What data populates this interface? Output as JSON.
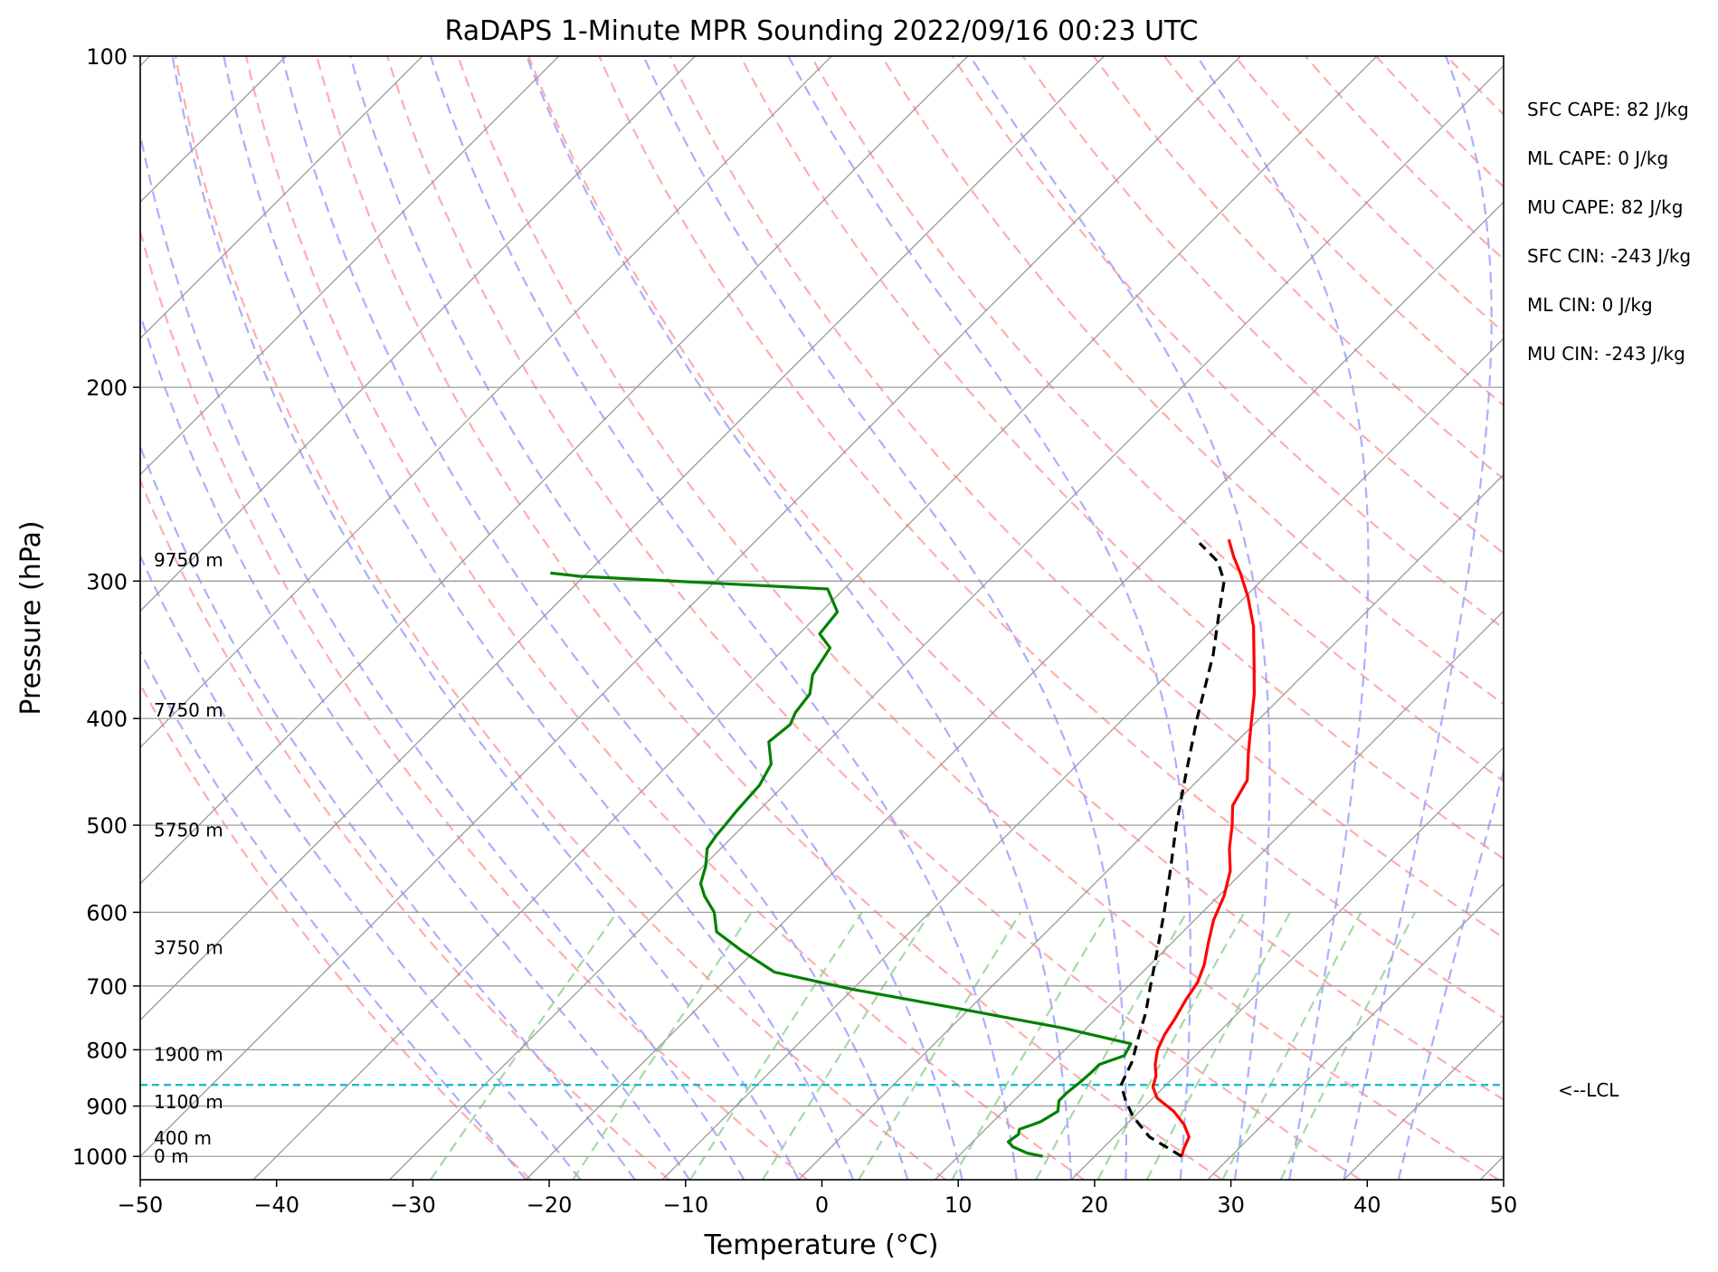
{
  "chart_data": {
    "type": "line",
    "title": "RaDAPS 1-Minute MPR Sounding 2022/09/16 00:23 UTC",
    "xlabel": "Temperature (°C)",
    "ylabel": "Pressure (hPa)",
    "xlim": [
      -50,
      50
    ],
    "ylim": [
      1050,
      100
    ],
    "y_scale": "log",
    "skew": "skew-T",
    "x_ticks": [
      -50,
      -40,
      -30,
      -20,
      -10,
      0,
      10,
      20,
      30,
      40,
      50
    ],
    "x_tick_labels": [
      "−50",
      "−40",
      "−30",
      "−20",
      "−10",
      "0",
      "10",
      "20",
      "30",
      "40",
      "50"
    ],
    "y_ticks": [
      100,
      200,
      300,
      400,
      500,
      600,
      700,
      800,
      900,
      1000
    ],
    "y_tick_labels": [
      "100",
      "200",
      "300",
      "400",
      "500",
      "600",
      "700",
      "800",
      "900",
      "1000"
    ],
    "grid": true,
    "colors": {
      "temperature": "#ff0000",
      "dewpoint": "#008000",
      "parcel": "#000000",
      "lcl": "#17becf",
      "dry_adiabat": "#ff9f9f",
      "moist_adiabat": "#9f9fff",
      "mixing_ratio": "#8fcf8f",
      "isotherm": "#9b9b9b"
    },
    "series": [
      {
        "key": "temperature",
        "style": "solid",
        "points": [
          {
            "p": 1000,
            "t": 26.4
          },
          {
            "p": 985,
            "t": 26.0
          },
          {
            "p": 960,
            "t": 25.5
          },
          {
            "p": 935,
            "t": 24.2
          },
          {
            "p": 910,
            "t": 22.5
          },
          {
            "p": 885,
            "t": 20.3
          },
          {
            "p": 865,
            "t": 19.2
          },
          {
            "p": 845,
            "t": 18.6
          },
          {
            "p": 825,
            "t": 17.7
          },
          {
            "p": 800,
            "t": 16.8
          },
          {
            "p": 775,
            "t": 16.2
          },
          {
            "p": 750,
            "t": 15.8
          },
          {
            "p": 720,
            "t": 15.2
          },
          {
            "p": 695,
            "t": 14.8
          },
          {
            "p": 670,
            "t": 14.0
          },
          {
            "p": 640,
            "t": 12.7
          },
          {
            "p": 610,
            "t": 11.4
          },
          {
            "p": 580,
            "t": 10.4
          },
          {
            "p": 550,
            "t": 9.0
          },
          {
            "p": 525,
            "t": 7.3
          },
          {
            "p": 500,
            "t": 5.8
          },
          {
            "p": 480,
            "t": 4.4
          },
          {
            "p": 455,
            "t": 3.6
          },
          {
            "p": 430,
            "t": 1.7
          },
          {
            "p": 405,
            "t": -0.2
          },
          {
            "p": 380,
            "t": -2.2
          },
          {
            "p": 355,
            "t": -4.6
          },
          {
            "p": 330,
            "t": -7.2
          },
          {
            "p": 310,
            "t": -9.8
          },
          {
            "p": 295,
            "t": -12.1
          },
          {
            "p": 285,
            "t": -13.8
          },
          {
            "p": 275,
            "t": -15.4
          }
        ]
      },
      {
        "key": "dewpoint",
        "style": "solid",
        "points": [
          {
            "p": 1000,
            "t": 16.2
          },
          {
            "p": 993,
            "t": 14.8
          },
          {
            "p": 980,
            "t": 13.3
          },
          {
            "p": 970,
            "t": 12.6
          },
          {
            "p": 955,
            "t": 12.8
          },
          {
            "p": 945,
            "t": 12.5
          },
          {
            "p": 930,
            "t": 13.5
          },
          {
            "p": 910,
            "t": 14.0
          },
          {
            "p": 890,
            "t": 13.3
          },
          {
            "p": 875,
            "t": 13.3
          },
          {
            "p": 855,
            "t": 13.5
          },
          {
            "p": 840,
            "t": 13.6
          },
          {
            "p": 825,
            "t": 13.6
          },
          {
            "p": 810,
            "t": 14.8
          },
          {
            "p": 790,
            "t": 14.4
          },
          {
            "p": 765,
            "t": 8.4
          },
          {
            "p": 735,
            "t": -0.5
          },
          {
            "p": 705,
            "t": -10.0
          },
          {
            "p": 680,
            "t": -17.0
          },
          {
            "p": 650,
            "t": -21.0
          },
          {
            "p": 625,
            "t": -24.2
          },
          {
            "p": 600,
            "t": -25.8
          },
          {
            "p": 580,
            "t": -27.7
          },
          {
            "p": 565,
            "t": -28.9
          },
          {
            "p": 545,
            "t": -29.8
          },
          {
            "p": 525,
            "t": -31.0
          },
          {
            "p": 510,
            "t": -31.3
          },
          {
            "p": 500,
            "t": -31.4
          },
          {
            "p": 485,
            "t": -31.6
          },
          {
            "p": 460,
            "t": -31.8
          },
          {
            "p": 440,
            "t": -32.5
          },
          {
            "p": 420,
            "t": -34.3
          },
          {
            "p": 405,
            "t": -34.0
          },
          {
            "p": 395,
            "t": -34.5
          },
          {
            "p": 380,
            "t": -34.8
          },
          {
            "p": 365,
            "t": -36.0
          },
          {
            "p": 345,
            "t": -36.7
          },
          {
            "p": 335,
            "t": -38.5
          },
          {
            "p": 320,
            "t": -38.8
          },
          {
            "p": 305,
            "t": -41.2
          },
          {
            "p": 297,
            "t": -60.3
          },
          {
            "p": 295,
            "t": -62.7
          }
        ]
      },
      {
        "key": "parcel",
        "style": "dashed",
        "points": [
          {
            "p": 1000,
            "t": 26.4
          },
          {
            "p": 960,
            "t": 22.6
          },
          {
            "p": 920,
            "t": 19.9
          },
          {
            "p": 890,
            "t": 18.2
          },
          {
            "p": 861,
            "t": 16.7
          },
          {
            "p": 820,
            "t": 15.8
          },
          {
            "p": 780,
            "t": 14.5
          },
          {
            "p": 740,
            "t": 13.2
          },
          {
            "p": 700,
            "t": 11.6
          },
          {
            "p": 650,
            "t": 9.5
          },
          {
            "p": 600,
            "t": 7.2
          },
          {
            "p": 550,
            "t": 4.6
          },
          {
            "p": 500,
            "t": 1.7
          },
          {
            "p": 450,
            "t": -1.3
          },
          {
            "p": 400,
            "t": -4.6
          },
          {
            "p": 350,
            "t": -8.1
          },
          {
            "p": 320,
            "t": -10.8
          },
          {
            "p": 300,
            "t": -12.7
          },
          {
            "p": 288,
            "t": -14.6
          },
          {
            "p": 277,
            "t": -17.3
          }
        ]
      }
    ],
    "lcl": {
      "p": 861,
      "label": "<--LCL"
    },
    "height_labels": [
      {
        "p": 1000,
        "label": "0 m"
      },
      {
        "p": 962,
        "label": "400 m"
      },
      {
        "p": 892,
        "label": "1100 m"
      },
      {
        "p": 808,
        "label": "1900 m"
      },
      {
        "p": 646,
        "label": "3750 m"
      },
      {
        "p": 505,
        "label": "5750 m"
      },
      {
        "p": 393,
        "label": "7750 m"
      },
      {
        "p": 287,
        "label": "9750 m"
      }
    ],
    "indices": [
      "SFC CAPE: 82 J/kg",
      "ML CAPE: 0 J/kg",
      "MU CAPE: 82 J/kg",
      "SFC CIN: -243 J/kg",
      "ML CIN: 0 J/kg",
      "MU CIN: -243 J/kg"
    ]
  }
}
